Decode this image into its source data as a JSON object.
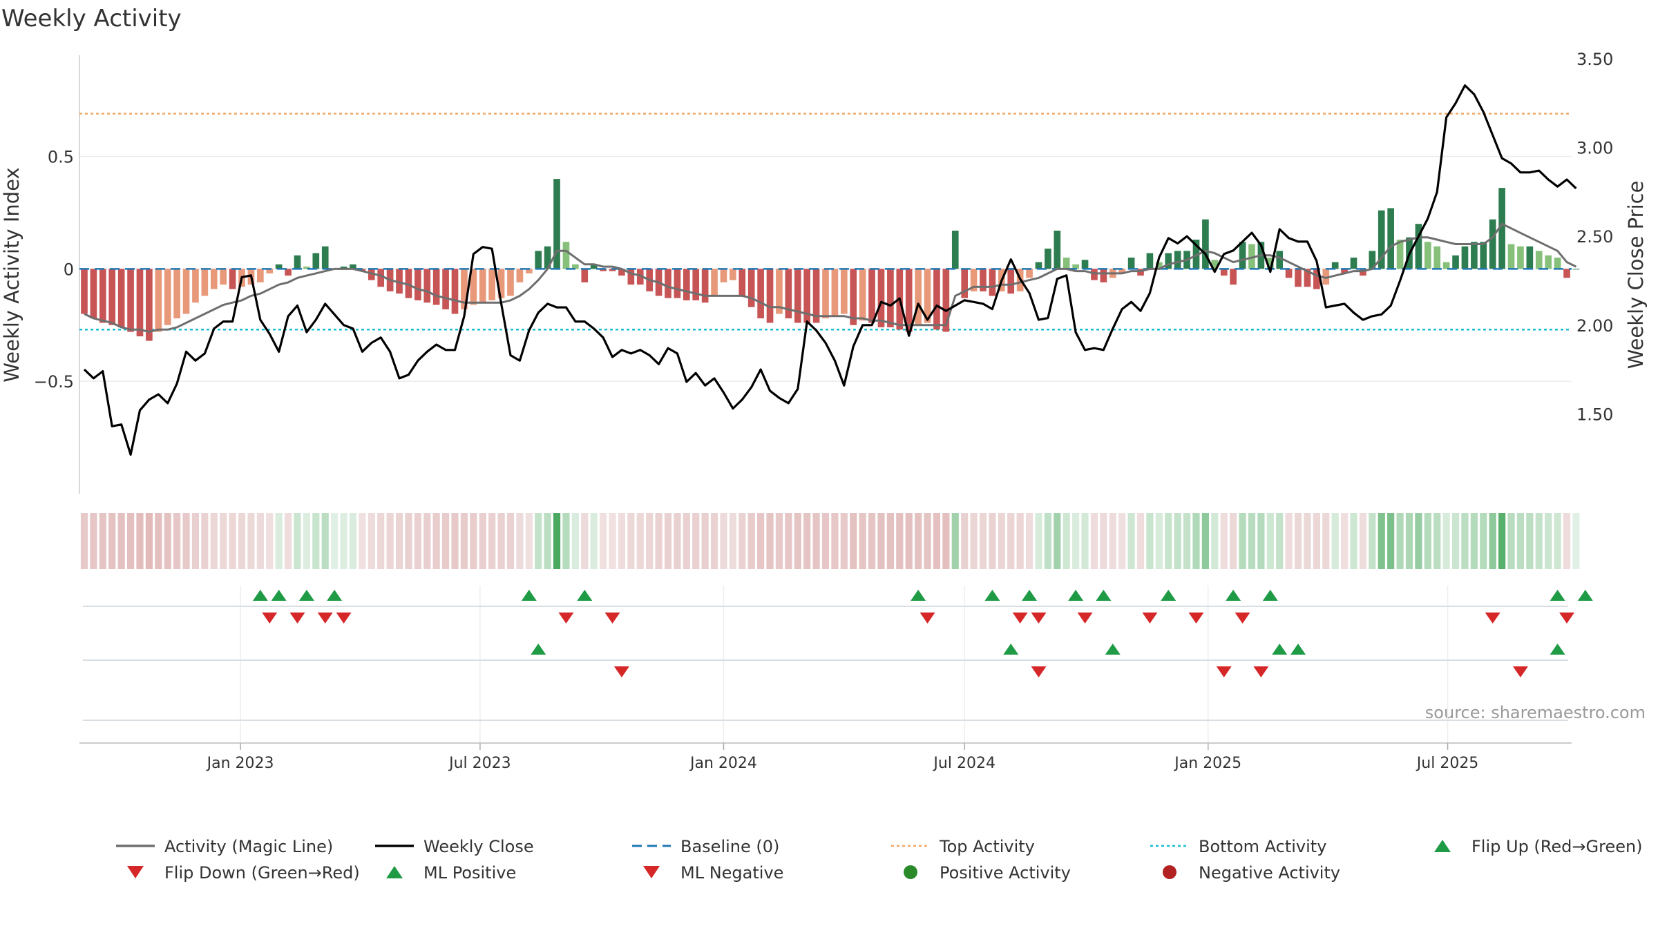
{
  "chart_data": {
    "type": "bar+line",
    "title": "Weekly Activity",
    "ylabel_left": "Weekly Activity Index",
    "ylabel_right": "Weekly Close Price",
    "source": "source: sharemaestro.com",
    "start_date": "2022-09-05",
    "week_count": 161,
    "left_axis": {
      "ylim": [
        -1.0,
        0.95
      ],
      "ticks": [
        0.5,
        0,
        -0.5
      ],
      "tick_labels": [
        "0.5",
        "0",
        "−0.5"
      ]
    },
    "right_axis": {
      "ylim": [
        1.05,
        3.52
      ],
      "ticks": [
        3.5,
        3.0,
        2.5,
        2.0,
        1.5
      ],
      "tick_labels": [
        "3.50",
        "3.00",
        "2.50",
        "2.00",
        "1.50"
      ]
    },
    "x_ticks": [
      {
        "label": "Jan 2023",
        "date": "2023-01-01"
      },
      {
        "label": "Jul 2023",
        "date": "2023-07-01"
      },
      {
        "label": "Jan 2024",
        "date": "2024-01-01"
      },
      {
        "label": "Jul 2024",
        "date": "2024-07-01"
      },
      {
        "label": "Jan 2025",
        "date": "2025-01-01"
      },
      {
        "label": "Jul 2025",
        "date": "2025-07-01"
      }
    ],
    "reference_lines": {
      "baseline": 0,
      "top_activity": 0.69,
      "bottom_activity": -0.27
    },
    "colors": {
      "strong_pos": "#2e7d50",
      "light_pos": "#86c07a",
      "strong_neg": "#c85555",
      "light_neg": "#e8997a",
      "magic_line": "#6e6e6e",
      "close": "#000000",
      "baseline": "#1f77b4",
      "top": "#f0a868",
      "bottom": "#17becf",
      "marker_up": "#1f9a45",
      "marker_down": "#d62728",
      "positive_dot": "#2a8a2a",
      "negative_dot": "#b22222"
    },
    "activity": [
      -0.2,
      -0.22,
      -0.24,
      -0.25,
      -0.26,
      -0.28,
      -0.3,
      -0.32,
      -0.28,
      -0.25,
      -0.22,
      -0.2,
      -0.15,
      -0.12,
      -0.09,
      -0.07,
      -0.09,
      -0.08,
      -0.07,
      -0.06,
      -0.02,
      0.02,
      -0.03,
      0.06,
      0.01,
      0.07,
      0.1,
      0.0,
      0.01,
      0.02,
      -0.01,
      -0.05,
      -0.08,
      -0.1,
      -0.11,
      -0.13,
      -0.14,
      -0.15,
      -0.16,
      -0.18,
      -0.2,
      -0.18,
      -0.16,
      -0.15,
      -0.14,
      -0.13,
      -0.12,
      -0.06,
      -0.02,
      0.08,
      0.1,
      0.4,
      0.12,
      0.02,
      -0.06,
      0.02,
      -0.01,
      -0.01,
      -0.03,
      -0.07,
      -0.07,
      -0.1,
      -0.12,
      -0.13,
      -0.13,
      -0.14,
      -0.14,
      -0.15,
      -0.12,
      -0.06,
      -0.05,
      -0.12,
      -0.17,
      -0.22,
      -0.24,
      -0.2,
      -0.22,
      -0.24,
      -0.24,
      -0.24,
      -0.22,
      -0.21,
      -0.2,
      -0.25,
      -0.23,
      -0.24,
      -0.26,
      -0.26,
      -0.27,
      -0.28,
      -0.25,
      -0.24,
      -0.27,
      -0.28,
      0.17,
      -0.13,
      -0.1,
      -0.1,
      -0.12,
      -0.1,
      -0.11,
      -0.1,
      -0.04,
      0.03,
      0.09,
      0.17,
      0.05,
      0.02,
      0.04,
      -0.05,
      -0.06,
      -0.04,
      -0.02,
      0.05,
      -0.03,
      0.07,
      0.03,
      0.07,
      0.08,
      0.08,
      0.13,
      0.22,
      0.04,
      -0.03,
      -0.07,
      0.12,
      0.11,
      0.12,
      0.05,
      0.08,
      -0.04,
      -0.08,
      -0.08,
      -0.09,
      -0.07,
      0.03,
      -0.02,
      0.05,
      -0.03,
      0.08,
      0.26,
      0.27,
      0.13,
      0.14,
      0.2,
      0.12,
      0.1,
      0.03,
      0.06,
      0.1,
      0.12,
      0.12,
      0.22,
      0.36,
      0.11,
      0.1,
      0.1,
      0.08,
      0.06,
      0.05,
      -0.04,
      0.0
    ],
    "magic_line": [
      -0.2,
      -0.22,
      -0.23,
      -0.24,
      -0.26,
      -0.27,
      -0.27,
      -0.28,
      -0.27,
      -0.27,
      -0.26,
      -0.24,
      -0.22,
      -0.2,
      -0.18,
      -0.16,
      -0.15,
      -0.14,
      -0.12,
      -0.11,
      -0.09,
      -0.07,
      -0.06,
      -0.04,
      -0.03,
      -0.02,
      -0.01,
      0.0,
      0.0,
      0.0,
      -0.01,
      -0.02,
      -0.03,
      -0.05,
      -0.06,
      -0.07,
      -0.09,
      -0.1,
      -0.12,
      -0.13,
      -0.14,
      -0.15,
      -0.15,
      -0.15,
      -0.15,
      -0.15,
      -0.14,
      -0.12,
      -0.09,
      -0.05,
      0.0,
      0.08,
      0.08,
      0.05,
      0.02,
      0.02,
      0.01,
      0.01,
      0.0,
      -0.02,
      -0.03,
      -0.05,
      -0.06,
      -0.08,
      -0.09,
      -0.1,
      -0.11,
      -0.12,
      -0.12,
      -0.12,
      -0.12,
      -0.12,
      -0.13,
      -0.15,
      -0.17,
      -0.17,
      -0.18,
      -0.19,
      -0.2,
      -0.21,
      -0.21,
      -0.21,
      -0.21,
      -0.22,
      -0.22,
      -0.23,
      -0.23,
      -0.24,
      -0.25,
      -0.25,
      -0.25,
      -0.25,
      -0.25,
      -0.25,
      -0.12,
      -0.1,
      -0.08,
      -0.08,
      -0.08,
      -0.07,
      -0.07,
      -0.06,
      -0.05,
      -0.04,
      -0.02,
      0.0,
      0.0,
      -0.01,
      -0.01,
      -0.02,
      -0.02,
      -0.02,
      -0.02,
      -0.01,
      -0.01,
      0.0,
      0.0,
      0.02,
      0.03,
      0.04,
      0.06,
      0.08,
      0.07,
      0.05,
      0.03,
      0.04,
      0.05,
      0.06,
      0.06,
      0.05,
      0.03,
      0.01,
      -0.01,
      -0.03,
      -0.04,
      -0.03,
      -0.02,
      -0.01,
      -0.01,
      0.0,
      0.05,
      0.1,
      0.12,
      0.13,
      0.14,
      0.14,
      0.13,
      0.12,
      0.11,
      0.11,
      0.11,
      0.11,
      0.14,
      0.2,
      0.18,
      0.16,
      0.14,
      0.12,
      0.1,
      0.08,
      0.03,
      0.01
    ],
    "close": [
      1.75,
      1.7,
      1.74,
      1.43,
      1.44,
      1.27,
      1.52,
      1.58,
      1.61,
      1.56,
      1.67,
      1.85,
      1.8,
      1.84,
      1.98,
      2.02,
      2.02,
      2.27,
      2.28,
      2.03,
      1.95,
      1.85,
      2.05,
      2.11,
      1.96,
      2.03,
      2.12,
      2.06,
      2.0,
      1.98,
      1.85,
      1.9,
      1.93,
      1.85,
      1.7,
      1.72,
      1.8,
      1.85,
      1.89,
      1.86,
      1.86,
      2.05,
      2.4,
      2.44,
      2.43,
      2.12,
      1.83,
      1.8,
      1.97,
      2.07,
      2.12,
      2.1,
      2.1,
      2.02,
      2.02,
      1.98,
      1.93,
      1.82,
      1.86,
      1.84,
      1.86,
      1.83,
      1.78,
      1.87,
      1.84,
      1.68,
      1.73,
      1.66,
      1.7,
      1.62,
      1.53,
      1.58,
      1.65,
      1.75,
      1.63,
      1.59,
      1.56,
      1.64,
      2.02,
      1.97,
      1.9,
      1.8,
      1.66,
      1.88,
      2.0,
      2.0,
      2.13,
      2.11,
      2.15,
      1.94,
      2.12,
      2.03,
      2.11,
      2.08,
      2.11,
      2.14,
      2.13,
      2.12,
      2.09,
      2.25,
      2.37,
      2.26,
      2.18,
      2.03,
      2.04,
      2.26,
      2.28,
      1.96,
      1.86,
      1.87,
      1.86,
      1.98,
      2.09,
      2.13,
      2.08,
      2.18,
      2.38,
      2.49,
      2.46,
      2.5,
      2.45,
      2.4,
      2.3,
      2.4,
      2.42,
      2.47,
      2.52,
      2.45,
      2.3,
      2.54,
      2.49,
      2.47,
      2.47,
      2.36,
      2.1,
      2.11,
      2.12,
      2.07,
      2.03,
      2.05,
      2.06,
      2.11,
      2.25,
      2.4,
      2.5,
      2.6,
      2.75,
      3.17,
      3.25,
      3.35,
      3.3,
      3.2,
      3.07,
      2.94,
      2.91,
      2.86,
      2.86,
      2.87,
      2.82,
      2.78,
      2.82,
      2.77
    ],
    "ml_bands": [
      {
        "name": "ml-short",
        "positive": [
          19,
          21,
          24,
          27,
          48,
          54,
          90,
          98,
          102,
          107,
          110,
          117,
          124,
          128,
          159,
          162
        ],
        "negative": [
          20,
          23,
          26,
          28,
          52,
          57,
          91,
          101,
          103,
          108,
          115,
          120,
          125,
          152,
          160
        ]
      },
      {
        "name": "ml-mid",
        "positive": [
          49,
          100,
          111,
          129,
          131,
          159
        ],
        "negative": [
          58,
          103,
          123,
          127,
          155
        ]
      },
      {
        "name": "ml-long",
        "positive": [],
        "negative": []
      }
    ],
    "legend": [
      {
        "label": "Activity (Magic Line)",
        "kind": "line",
        "color": "#6e6e6e"
      },
      {
        "label": "Weekly Close",
        "kind": "line",
        "color": "#000000"
      },
      {
        "label": "Baseline (0)",
        "kind": "dash",
        "color": "#1f77b4"
      },
      {
        "label": "Top Activity",
        "kind": "dot",
        "color": "#f0a868"
      },
      {
        "label": "Bottom Activity",
        "kind": "dot",
        "color": "#17becf"
      },
      {
        "label": "Flip Up (Red→Green)",
        "kind": "tri-up",
        "color": "#1f9a45"
      },
      {
        "label": "Flip Down (Green→Red)",
        "kind": "tri-down",
        "color": "#d62728"
      },
      {
        "label": "ML Positive",
        "kind": "tri-up",
        "color": "#1f9a45"
      },
      {
        "label": "ML Negative",
        "kind": "tri-down",
        "color": "#d62728"
      },
      {
        "label": "Positive Activity",
        "kind": "circle",
        "color": "#2a8a2a"
      },
      {
        "label": "Negative Activity",
        "kind": "circle",
        "color": "#b22222"
      }
    ]
  }
}
